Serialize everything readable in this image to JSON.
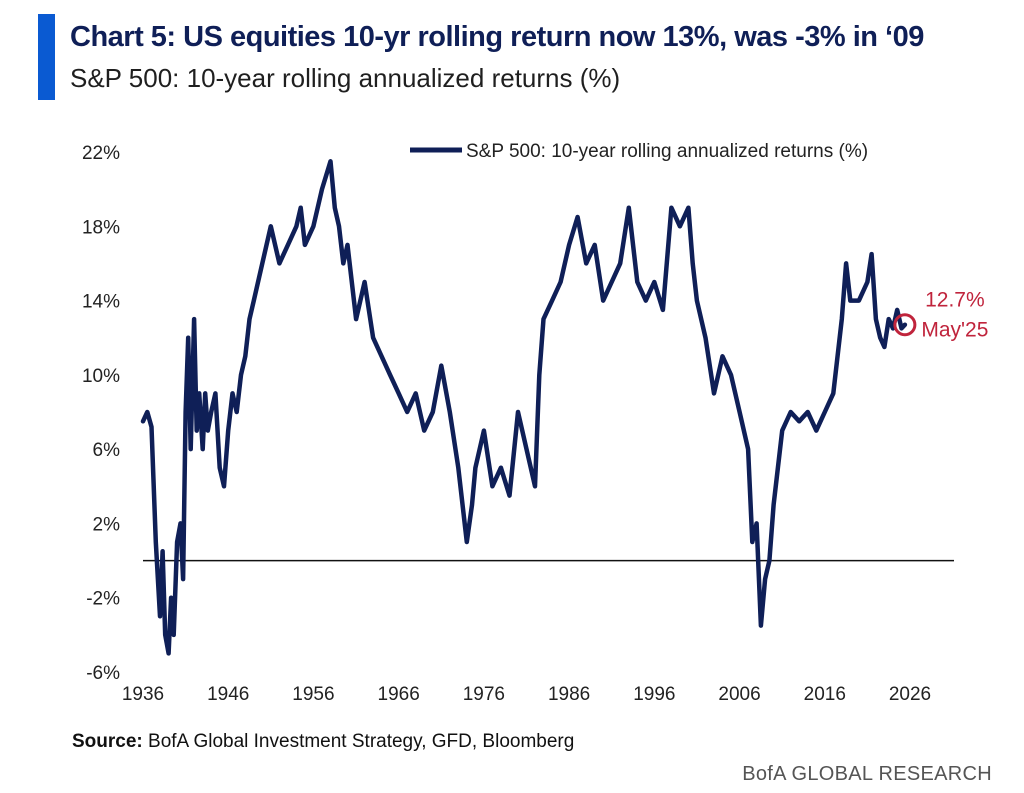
{
  "header": {
    "title": "Chart 5: US equities 10-yr rolling return now 13%, was -3% in ‘09",
    "subtitle": "S&P 500: 10-year rolling annualized returns (%)"
  },
  "footer": {
    "source_label": "Source:",
    "source_text": "BofA Global Investment Strategy, GFD, Bloomberg",
    "brand": "BofA GLOBAL RESEARCH"
  },
  "colors": {
    "accent": "#0a5ad2",
    "series": "#0f1f57",
    "annotation": "#c0243c",
    "title": "#0f1f57"
  },
  "chart_data": {
    "type": "line",
    "title": "Chart 5: US equities 10-yr rolling return now 13%, was -3% in ‘09",
    "subtitle": "S&P 500: 10-year rolling annualized returns (%)",
    "xlabel": "",
    "ylabel": "",
    "xlim": [
      1936,
      2032
    ],
    "ylim": [
      -6,
      22
    ],
    "xticks": [
      1936,
      1946,
      1956,
      1966,
      1976,
      1986,
      1996,
      2006,
      2016,
      2026
    ],
    "yticks": [
      -6,
      -2,
      2,
      6,
      10,
      14,
      18,
      22
    ],
    "ytick_labels": [
      "-6%",
      "-2%",
      "2%",
      "6%",
      "10%",
      "14%",
      "18%",
      "22%"
    ],
    "grid": false,
    "zero_line": true,
    "legend": {
      "position": "top-right"
    },
    "series": [
      {
        "name": "S&P 500: 10-year rolling annualized returns (%)",
        "x": [
          1936.0,
          1936.5,
          1937.0,
          1937.5,
          1938.0,
          1938.3,
          1938.6,
          1939.0,
          1939.3,
          1939.6,
          1940.0,
          1940.4,
          1940.7,
          1941.0,
          1941.3,
          1941.6,
          1942.0,
          1942.3,
          1942.6,
          1943.0,
          1943.3,
          1943.6,
          1944.0,
          1944.5,
          1945.0,
          1945.5,
          1946.0,
          1946.5,
          1947.0,
          1947.5,
          1948.0,
          1948.5,
          1949.0,
          1950.0,
          1951.0,
          1951.5,
          1952.0,
          1953.0,
          1954.0,
          1954.5,
          1955.0,
          1956.0,
          1957.0,
          1958.0,
          1958.5,
          1959.0,
          1959.5,
          1960.0,
          1961.0,
          1962.0,
          1963.0,
          1964.0,
          1965.0,
          1966.0,
          1967.0,
          1968.0,
          1969.0,
          1970.0,
          1971.0,
          1972.0,
          1973.0,
          1974.0,
          1974.6,
          1975.0,
          1976.0,
          1977.0,
          1978.0,
          1979.0,
          1980.0,
          1981.0,
          1982.0,
          1982.5,
          1983.0,
          1984.0,
          1985.0,
          1986.0,
          1987.0,
          1988.0,
          1989.0,
          1990.0,
          1991.0,
          1992.0,
          1993.0,
          1994.0,
          1995.0,
          1996.0,
          1997.0,
          1998.0,
          1999.0,
          2000.0,
          2000.5,
          2001.0,
          2002.0,
          2003.0,
          2004.0,
          2005.0,
          2006.0,
          2007.0,
          2007.5,
          2008.0,
          2008.5,
          2009.0,
          2009.5,
          2010.0,
          2010.5,
          2011.0,
          2012.0,
          2013.0,
          2014.0,
          2015.0,
          2016.0,
          2017.0,
          2018.0,
          2018.5,
          2019.0,
          2020.0,
          2021.0,
          2021.5,
          2022.0,
          2022.5,
          2023.0,
          2023.5,
          2024.0,
          2024.5,
          2025.0,
          2025.4
        ],
        "values": [
          7.5,
          8.0,
          7.2,
          1.0,
          -3.0,
          0.5,
          -4.0,
          -5.0,
          -2.0,
          -4.0,
          1.0,
          2.0,
          -1.0,
          8.0,
          12.0,
          6.0,
          13.0,
          7.0,
          9.0,
          6.0,
          9.0,
          7.0,
          8.0,
          9.0,
          5.0,
          4.0,
          7.0,
          9.0,
          8.0,
          10.0,
          11.0,
          13.0,
          14.0,
          16.0,
          18.0,
          17.0,
          16.0,
          17.0,
          18.0,
          19.0,
          17.0,
          18.0,
          20.0,
          21.5,
          19.0,
          18.0,
          16.0,
          17.0,
          13.0,
          15.0,
          12.0,
          11.0,
          10.0,
          9.0,
          8.0,
          9.0,
          7.0,
          8.0,
          10.5,
          8.0,
          5.0,
          1.0,
          3.0,
          5.0,
          7.0,
          4.0,
          5.0,
          3.5,
          8.0,
          6.0,
          4.0,
          10.0,
          13.0,
          14.0,
          15.0,
          17.0,
          18.5,
          16.0,
          17.0,
          14.0,
          15.0,
          16.0,
          19.0,
          15.0,
          14.0,
          15.0,
          13.5,
          19.0,
          18.0,
          19.0,
          16.0,
          14.0,
          12.0,
          9.0,
          11.0,
          10.0,
          8.0,
          6.0,
          1.0,
          2.0,
          -3.5,
          -1.0,
          0.0,
          3.0,
          5.0,
          7.0,
          8.0,
          7.5,
          8.0,
          7.0,
          8.0,
          9.0,
          13.0,
          16.0,
          14.0,
          14.0,
          15.0,
          16.5,
          13.0,
          12.0,
          11.5,
          13.0,
          12.5,
          13.5,
          12.5,
          12.7
        ]
      }
    ],
    "annotations": [
      {
        "x": 2025.4,
        "y": 12.7,
        "label_value": "12.7%",
        "label_date": "May'25"
      }
    ]
  }
}
